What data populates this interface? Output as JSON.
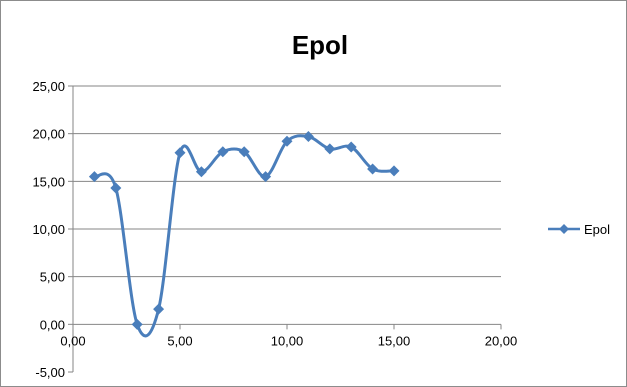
{
  "chart_data": {
    "type": "scatter",
    "title": "Epol",
    "xlabel": "",
    "ylabel": "",
    "xlim": [
      0,
      20
    ],
    "ylim": [
      -5,
      25
    ],
    "x_ticks": [
      "0,00",
      "5,00",
      "10,00",
      "15,00",
      "20,00"
    ],
    "y_ticks": [
      "25,00",
      "20,00",
      "15,00",
      "10,00",
      "5,00",
      "0,00",
      "-5,00"
    ],
    "x_tick_values": [
      0,
      5,
      10,
      15,
      20
    ],
    "y_tick_values": [
      25,
      20,
      15,
      10,
      5,
      0,
      -5
    ],
    "grid": true,
    "smooth": true,
    "legend_position": "right",
    "series": [
      {
        "name": "Epol",
        "color": "#4a7ebb",
        "marker": "diamond",
        "x": [
          1,
          2,
          3,
          4,
          5,
          6,
          7,
          8,
          9,
          10,
          11,
          12,
          13,
          14,
          15
        ],
        "y": [
          15.5,
          14.3,
          0.0,
          1.6,
          18.0,
          16.0,
          18.1,
          18.1,
          15.5,
          19.2,
          19.7,
          18.4,
          18.6,
          16.3,
          16.1
        ]
      }
    ]
  }
}
